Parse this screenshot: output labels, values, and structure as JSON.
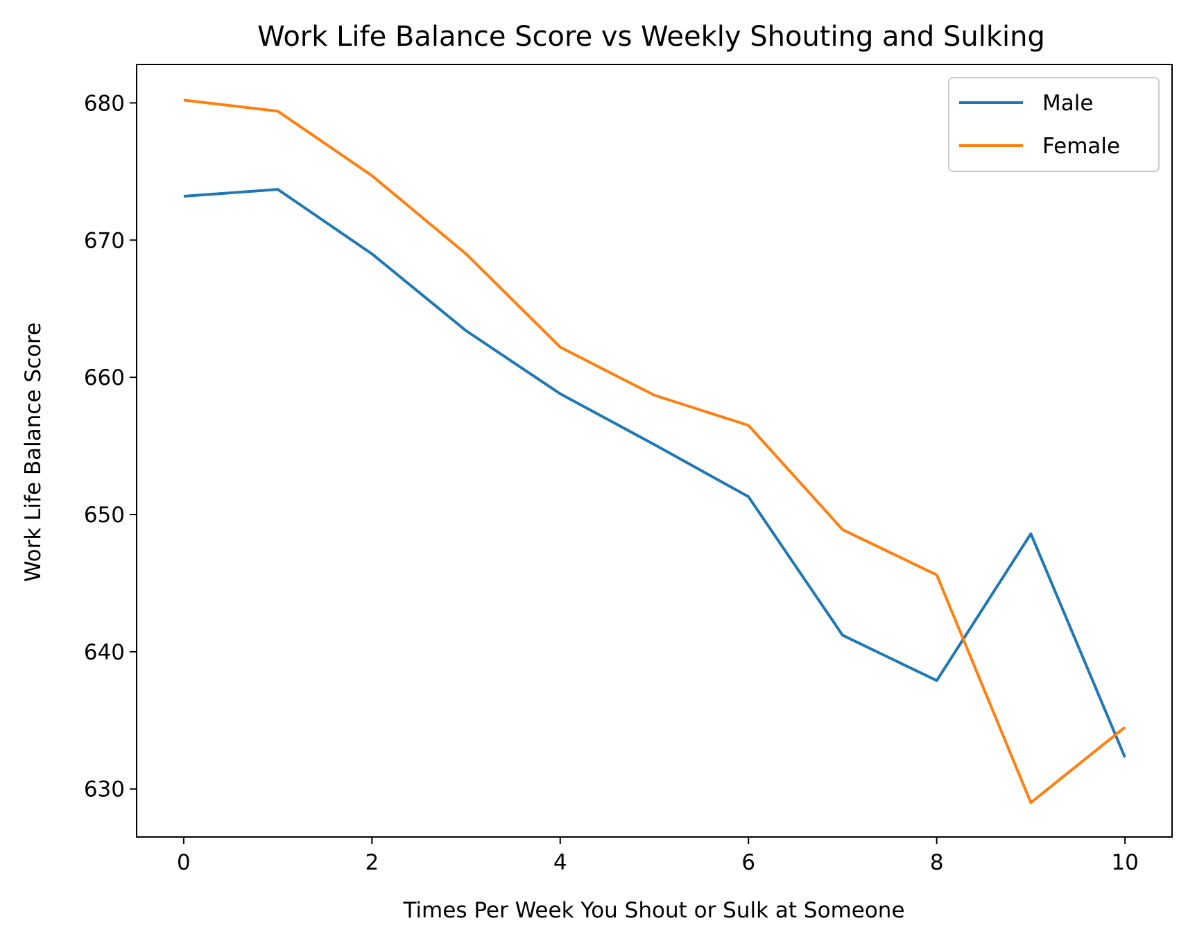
{
  "chart_data": {
    "type": "line",
    "title": "Work Life Balance Score vs Weekly Shouting and Sulking",
    "xlabel": "Times Per Week You Shout or Sulk at Someone",
    "ylabel": "Work Life Balance Score",
    "x": [
      0,
      1,
      2,
      3,
      4,
      5,
      6,
      7,
      8,
      9,
      10
    ],
    "xlim": [
      -0.5,
      10.5
    ],
    "ylim": [
      626.5,
      682.8
    ],
    "xticks": [
      0,
      2,
      4,
      6,
      8,
      10
    ],
    "yticks": [
      630,
      640,
      650,
      660,
      670,
      680
    ],
    "grid": false,
    "legend_position": "top-right",
    "series": [
      {
        "name": "Male",
        "color": "#1f77b4",
        "values": [
          673.2,
          673.7,
          669.0,
          663.4,
          658.8,
          655.1,
          651.3,
          641.2,
          637.9,
          648.6,
          632.3
        ]
      },
      {
        "name": "Female",
        "color": "#ff7f0e",
        "values": [
          680.2,
          679.4,
          674.7,
          669.0,
          662.2,
          658.7,
          656.5,
          648.9,
          645.6,
          629.0,
          634.5
        ]
      }
    ]
  }
}
